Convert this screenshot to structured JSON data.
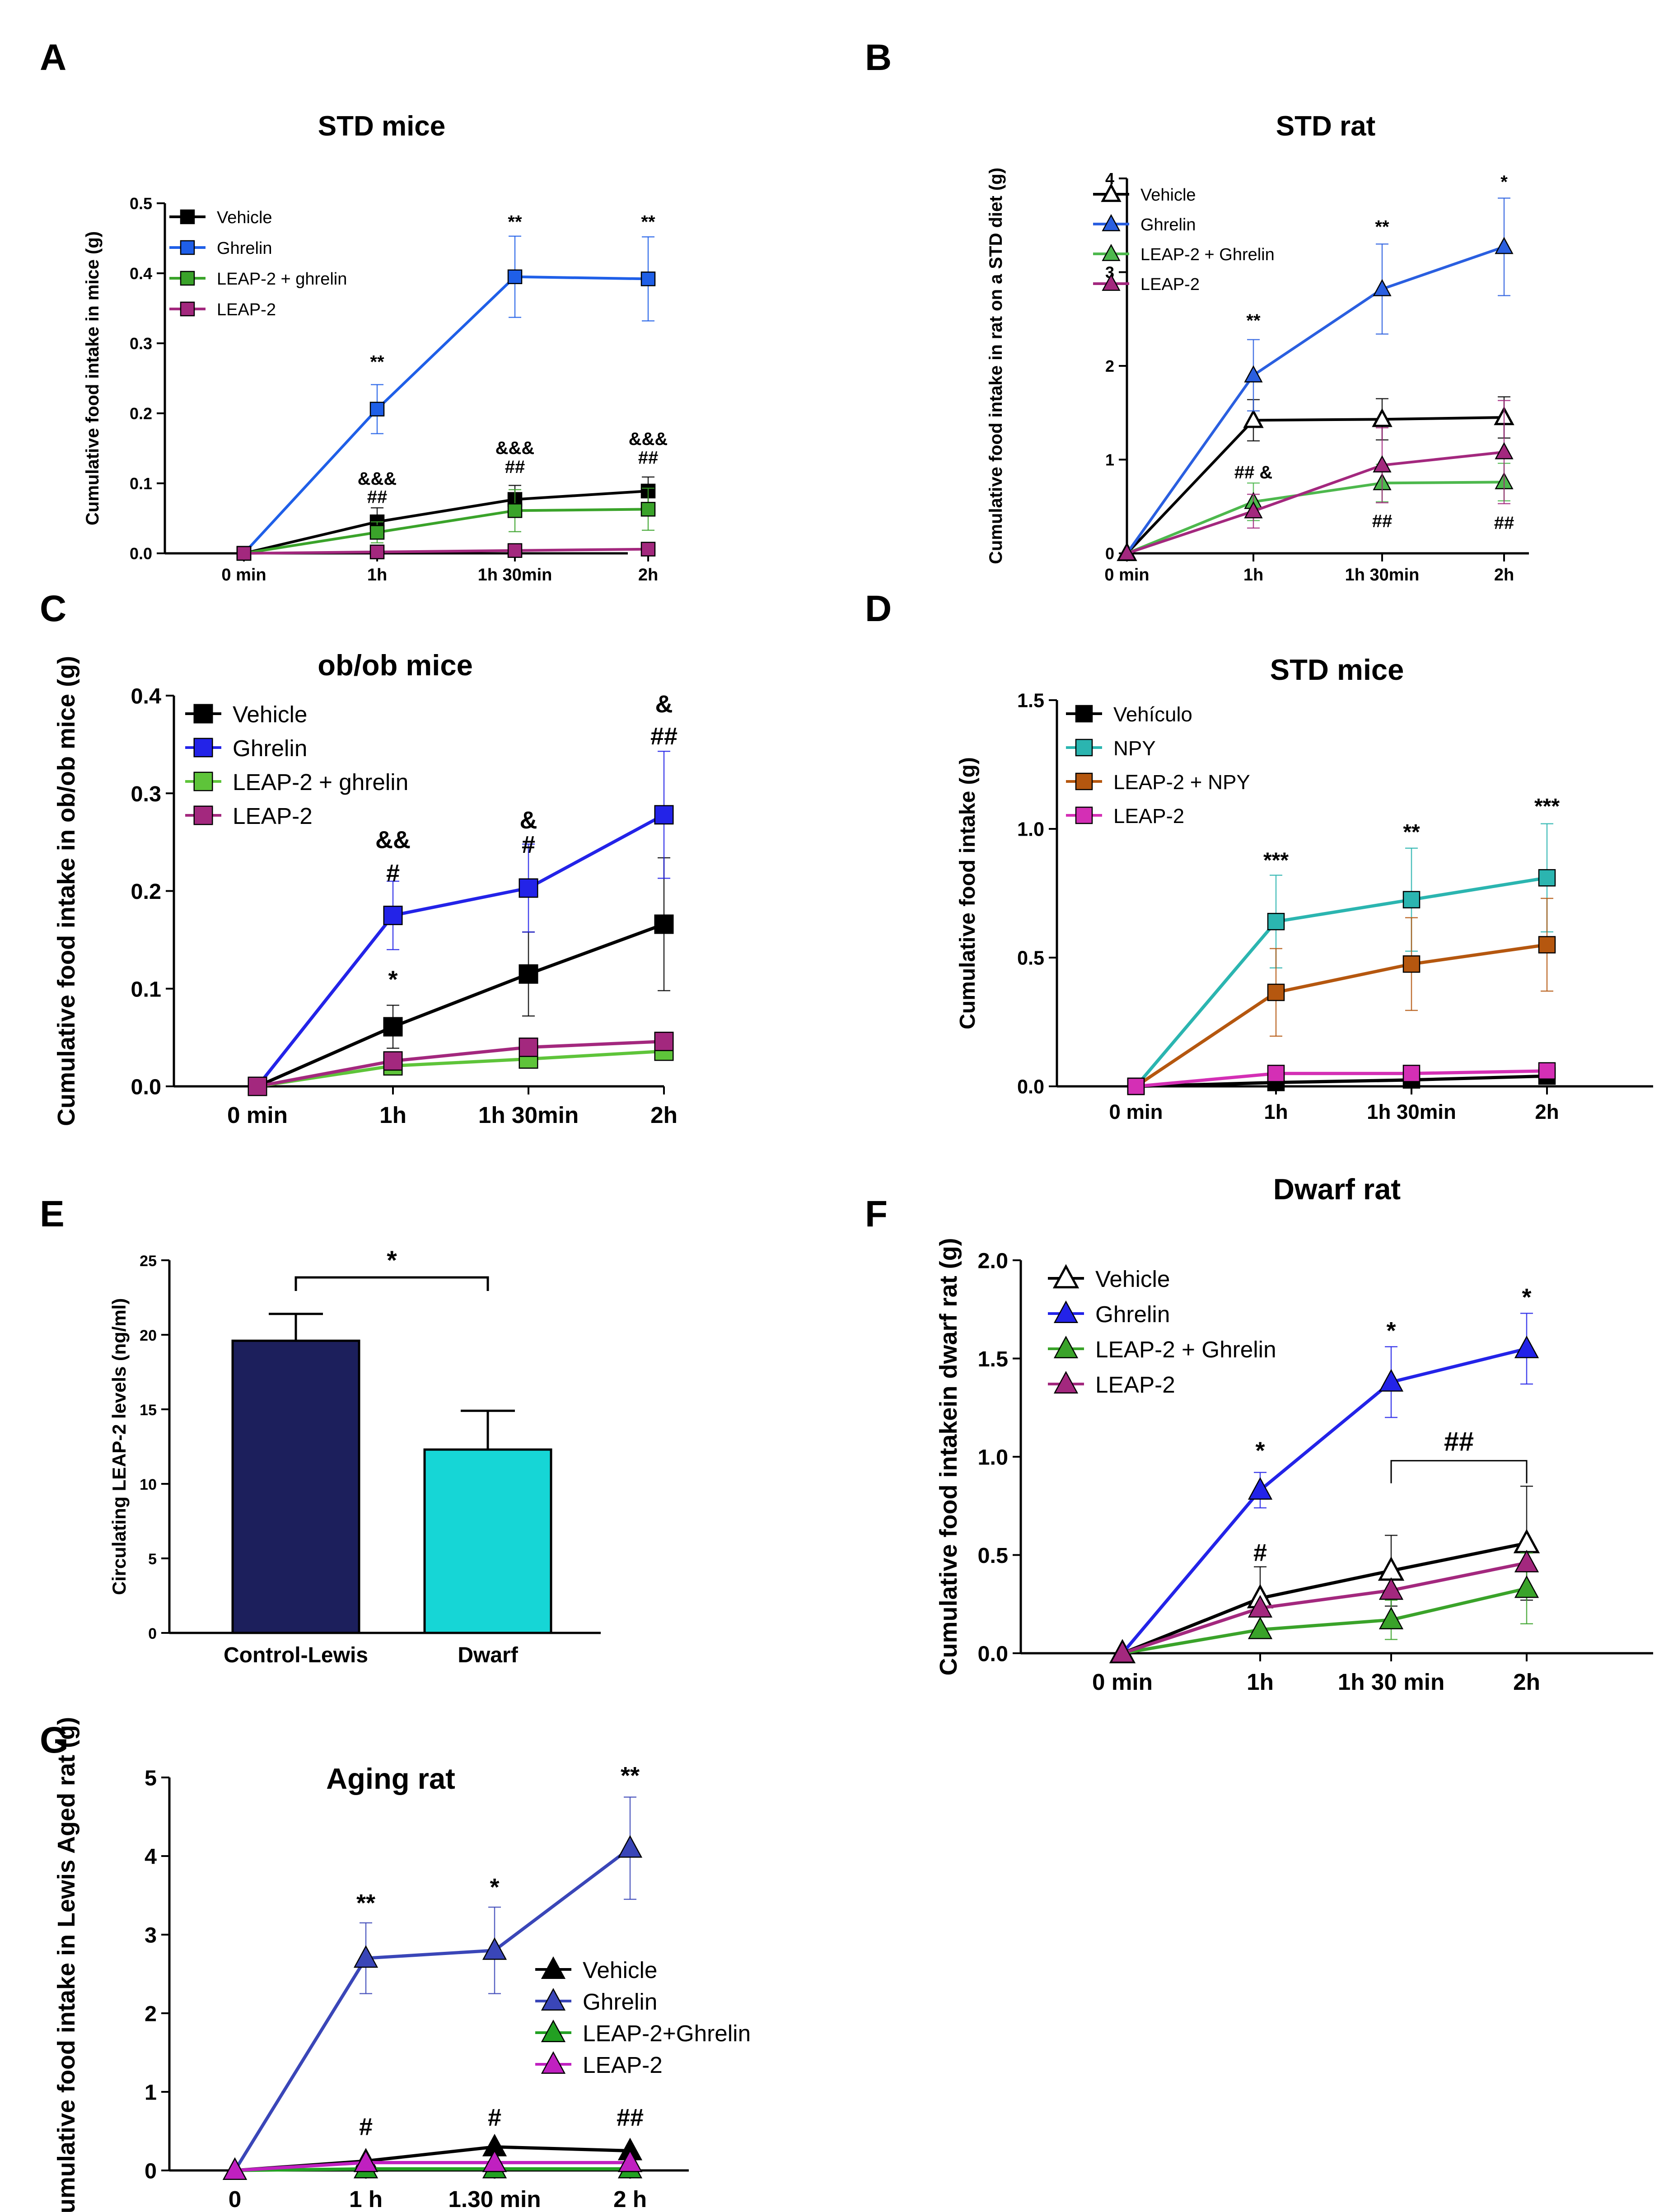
{
  "figure": {
    "panels": [
      {
        "letter": "A",
        "title": "STD mice",
        "ylabel": "Cumulative food intake in mice (g)",
        "xlabel": ""
      },
      {
        "letter": "B",
        "title": "STD rat",
        "ylabel": "Cumulative food intake  in rat on a STD diet (g)",
        "xlabel": ""
      },
      {
        "letter": "C",
        "title": "ob/ob mice",
        "ylabel": "Cumulative food intake in ob/ob mice  (g)",
        "xlabel": ""
      },
      {
        "letter": "D",
        "title": "STD mice",
        "ylabel": "Cumulative food intake (g)",
        "xlabel": ""
      },
      {
        "letter": "E",
        "title": "",
        "ylabel": "Circulating LEAP-2 levels (ng/ml)",
        "xlabel": ""
      },
      {
        "letter": "F",
        "title": "Dwarf rat",
        "ylabel": "Cumulative food intakein dwarf rat (g)",
        "xlabel": ""
      },
      {
        "letter": "G",
        "title": "Aging rat",
        "ylabel": "Cumulative food intake in Lewis Aged rat (g)",
        "xlabel": ""
      }
    ]
  },
  "chart_data": [
    {
      "type": "line",
      "panel": "A",
      "title": "STD mice",
      "ylabel": "Cumulative food intake in mice (g)",
      "categories": [
        "0 min",
        "1h",
        "1h 30min",
        "2h"
      ],
      "ylim": [
        0,
        0.5
      ],
      "yticks": [
        "0.0",
        "0.1",
        "0.2",
        "0.3",
        "0.4",
        "0.5"
      ],
      "marker": "square",
      "legend_position": "top-left",
      "series": [
        {
          "name": "Vehicle",
          "color": "#000000",
          "values": [
            0,
            0.045,
            0.077,
            0.089
          ],
          "err": [
            0,
            0.02,
            0.02,
            0.02
          ]
        },
        {
          "name": "Ghrelin",
          "color": "#1f5fe8",
          "values": [
            0,
            0.206,
            0.395,
            0.392
          ],
          "err": [
            0,
            0.035,
            0.058,
            0.06
          ]
        },
        {
          "name": "LEAP-2 + ghrelin",
          "color": "#3aa32a",
          "values": [
            0,
            0.03,
            0.061,
            0.063
          ],
          "err": [
            0,
            0.015,
            0.03,
            0.03
          ]
        },
        {
          "name": "LEAP-2",
          "color": "#a3287e",
          "values": [
            0,
            0.002,
            0.004,
            0.006
          ],
          "err": [
            0,
            0,
            0,
            0
          ]
        }
      ],
      "annotations": [
        {
          "x": "1h",
          "y": 0.265,
          "text": "**"
        },
        {
          "x": "1h 30min",
          "y": 0.465,
          "text": "**"
        },
        {
          "x": "2h",
          "y": 0.465,
          "text": "**"
        },
        {
          "x": "1h",
          "y": 0.098,
          "text": "&&&"
        },
        {
          "x": "1h",
          "y": 0.072,
          "text": "##"
        },
        {
          "x": "1h 30min",
          "y": 0.142,
          "text": "&&&"
        },
        {
          "x": "1h 30min",
          "y": 0.115,
          "text": "##"
        },
        {
          "x": "2h",
          "y": 0.155,
          "text": "&&&"
        },
        {
          "x": "2h",
          "y": 0.128,
          "text": "##"
        }
      ]
    },
    {
      "type": "line",
      "panel": "B",
      "title": "STD rat",
      "ylabel": "Cumulative food intake  in rat on a STD diet (g)",
      "categories": [
        "0 min",
        "1h",
        "1h 30min",
        "2h"
      ],
      "ylim": [
        0,
        4
      ],
      "yticks": [
        "0",
        "1",
        "2",
        "3",
        "4"
      ],
      "marker": "triangle",
      "legend_position": "top-left",
      "series": [
        {
          "name": "Vehicle",
          "color": "#000000",
          "hollow": true,
          "values": [
            0,
            1.42,
            1.43,
            1.45
          ],
          "err": [
            0,
            0.22,
            0.22,
            0.22
          ]
        },
        {
          "name": "Ghrelin",
          "color": "#2a5fe0",
          "values": [
            0,
            1.9,
            2.82,
            3.27
          ],
          "err": [
            0,
            0.38,
            0.48,
            0.52
          ]
        },
        {
          "name": "LEAP-2 + Ghrelin",
          "color": "#4db84d",
          "values": [
            0,
            0.55,
            0.75,
            0.76
          ],
          "err": [
            0,
            0.2,
            0.2,
            0.2
          ]
        },
        {
          "name": "LEAP-2",
          "color": "#a3287e",
          "values": [
            0,
            0.45,
            0.94,
            1.08
          ],
          "err": [
            0,
            0.18,
            0.4,
            0.55
          ]
        }
      ],
      "annotations": [
        {
          "x": "1h",
          "y": 2.42,
          "text": "**"
        },
        {
          "x": "1h 30min",
          "y": 3.42,
          "text": "**"
        },
        {
          "x": "2h",
          "y": 3.9,
          "text": "*"
        },
        {
          "x": "1h",
          "y": 0.8,
          "text": "## &"
        },
        {
          "x": "1h 30min",
          "y": 0.28,
          "text": "##"
        },
        {
          "x": "2h",
          "y": 0.26,
          "text": "##"
        }
      ]
    },
    {
      "type": "line",
      "panel": "C",
      "title": "ob/ob mice",
      "ylabel": "Cumulative food intake in ob/ob mice  (g)",
      "categories": [
        "0 min",
        "1h",
        "1h 30min",
        "2h"
      ],
      "ylim": [
        0,
        0.4
      ],
      "yticks": [
        "0.0",
        "0.1",
        "0.2",
        "0.3",
        "0.4"
      ],
      "marker": "square",
      "legend_position": "top-left",
      "series": [
        {
          "name": "Vehicle",
          "color": "#000000",
          "values": [
            0,
            0.061,
            0.115,
            0.166
          ],
          "err": [
            0,
            0.022,
            0.043,
            0.068
          ]
        },
        {
          "name": "Ghrelin",
          "color": "#2323e8",
          "values": [
            0,
            0.175,
            0.203,
            0.278
          ],
          "err": [
            0,
            0.035,
            0.045,
            0.065
          ]
        },
        {
          "name": "LEAP-2 + ghrelin",
          "color": "#5ec43a",
          "values": [
            0,
            0.021,
            0.028,
            0.036
          ],
          "err": [
            0,
            0,
            0,
            0
          ]
        },
        {
          "name": "LEAP-2",
          "color": "#a3287e",
          "values": [
            0,
            0.026,
            0.04,
            0.046
          ],
          "err": [
            0,
            0,
            0,
            0
          ]
        }
      ],
      "annotations": [
        {
          "x": "1h",
          "y": 0.244,
          "text": "&&"
        },
        {
          "x": "1h",
          "y": 0.21,
          "text": "#"
        },
        {
          "x": "1h",
          "y": 0.101,
          "text": "*"
        },
        {
          "x": "1h 30min",
          "y": 0.264,
          "text": "&"
        },
        {
          "x": "1h 30min",
          "y": 0.239,
          "text": "#"
        },
        {
          "x": "2h",
          "y": 0.383,
          "text": "&"
        },
        {
          "x": "2h",
          "y": 0.35,
          "text": "##"
        }
      ]
    },
    {
      "type": "line",
      "panel": "D",
      "title": "STD mice",
      "ylabel": "Cumulative food intake (g)",
      "categories": [
        "0 min",
        "1h",
        "1h 30min",
        "2h"
      ],
      "ylim": [
        0,
        1.5
      ],
      "yticks": [
        "0.0",
        "0.5",
        "1.0",
        "1.5"
      ],
      "marker": "square",
      "legend_position": "top-left",
      "series": [
        {
          "name": "Vehículo",
          "color": "#000000",
          "values": [
            0,
            0.015,
            0.025,
            0.04
          ],
          "err": [
            0,
            0,
            0,
            0
          ]
        },
        {
          "name": "NPY",
          "color": "#2bb5b0",
          "values": [
            0,
            0.64,
            0.725,
            0.81
          ],
          "err": [
            0,
            0.18,
            0.2,
            0.21
          ]
        },
        {
          "name": "LEAP-2 + NPY",
          "color": "#b5570f",
          "values": [
            0,
            0.365,
            0.475,
            0.55
          ],
          "err": [
            0,
            0.17,
            0.18,
            0.18
          ]
        },
        {
          "name": "LEAP-2",
          "color": "#d42fb5",
          "values": [
            0,
            0.05,
            0.05,
            0.06
          ],
          "err": [
            0,
            0,
            0,
            0
          ]
        }
      ],
      "annotations": [
        {
          "x": "1h",
          "y": 0.85,
          "text": "***"
        },
        {
          "x": "1h 30min",
          "y": 0.96,
          "text": "**"
        },
        {
          "x": "2h",
          "y": 1.06,
          "text": "***"
        }
      ]
    },
    {
      "type": "bar",
      "panel": "E",
      "ylabel": "Circulating LEAP-2 levels (ng/ml)",
      "categories": [
        "Control-Lewis",
        "Dwarf"
      ],
      "values": [
        19.6,
        12.3
      ],
      "err": [
        1.8,
        2.6
      ],
      "colors": [
        "#1c1f5c",
        "#16d6d6"
      ],
      "ylim": [
        0,
        25
      ],
      "yticks": [
        "0",
        "5",
        "10",
        "15",
        "20",
        "25"
      ],
      "annotation": "*"
    },
    {
      "type": "line",
      "panel": "F",
      "title": "Dwarf rat",
      "ylabel": "Cumulative food intakein dwarf rat (g)",
      "categories": [
        "0 min",
        "1h",
        "1h 30 min",
        "2h"
      ],
      "ylim": [
        0,
        2.0
      ],
      "yticks": [
        "0.0",
        "0.5",
        "1.0",
        "1.5",
        "2.0"
      ],
      "marker": "triangle",
      "legend_position": "top-left",
      "series": [
        {
          "name": "Vehicle",
          "color": "#000000",
          "hollow": true,
          "values": [
            0,
            0.28,
            0.42,
            0.56
          ],
          "err": [
            0,
            0.16,
            0.18,
            0.29
          ]
        },
        {
          "name": "Ghrelin",
          "color": "#2323e8",
          "values": [
            0,
            0.83,
            1.38,
            1.55
          ],
          "err": [
            0,
            0.09,
            0.18,
            0.18
          ]
        },
        {
          "name": "LEAP-2 + Ghrelin",
          "color": "#3aa32a",
          "values": [
            0,
            0.12,
            0.17,
            0.33
          ],
          "err": [
            0,
            0,
            0.1,
            0.18
          ]
        },
        {
          "name": "LEAP-2",
          "color": "#a3287e",
          "values": [
            0,
            0.23,
            0.32,
            0.46
          ],
          "err": [
            0,
            0,
            0,
            0
          ]
        }
      ],
      "annotations": [
        {
          "x": "1h",
          "y": 0.99,
          "text": "*"
        },
        {
          "x": "1h 30min",
          "y": 1.6,
          "text": "*"
        },
        {
          "x": "2h",
          "y": 1.77,
          "text": "*"
        },
        {
          "x": "1h",
          "y": 0.47,
          "text": "#"
        }
      ],
      "bracket": {
        "from": "1h 30 min",
        "to": "2h",
        "y": 0.98,
        "text": "##"
      }
    },
    {
      "type": "line",
      "panel": "G",
      "title": "Aging rat",
      "ylabel": "Cumulative food intake in Lewis Aged rat (g)",
      "categories": [
        "0",
        "1 h",
        "1.30 min",
        "2 h"
      ],
      "ylim": [
        0,
        5
      ],
      "yticks": [
        "0",
        "1",
        "2",
        "3",
        "4",
        "5"
      ],
      "marker": "triangle",
      "legend_position": "center-right",
      "series": [
        {
          "name": "Vehicle",
          "color": "#000000",
          "values": [
            0,
            0.12,
            0.3,
            0.25
          ],
          "err": [
            0,
            0,
            0,
            0
          ]
        },
        {
          "name": "Ghrelin",
          "color": "#3a46b8",
          "values": [
            0,
            2.7,
            2.8,
            4.1
          ],
          "err": [
            0,
            0.45,
            0.55,
            0.65
          ]
        },
        {
          "name": "LEAP-2+Ghrelin",
          "color": "#22a022",
          "values": [
            0,
            0.02,
            0.02,
            0.02
          ],
          "err": [
            0,
            0,
            0,
            0
          ]
        },
        {
          "name": "LEAP-2",
          "color": "#c020c0",
          "values": [
            0,
            0.1,
            0.1,
            0.1
          ],
          "err": [
            0,
            0,
            0,
            0
          ]
        }
      ],
      "annotations": [
        {
          "x": "1 h",
          "y": 3.3,
          "text": "**"
        },
        {
          "x": "1.30 min",
          "y": 3.5,
          "text": "*"
        },
        {
          "x": "2 h",
          "y": 4.92,
          "text": "**"
        },
        {
          "x": "1 h",
          "y": 0.45,
          "text": "#"
        },
        {
          "x": "1.30 min",
          "y": 0.57,
          "text": "#"
        },
        {
          "x": "2 h",
          "y": 0.57,
          "text": "##"
        }
      ]
    }
  ]
}
